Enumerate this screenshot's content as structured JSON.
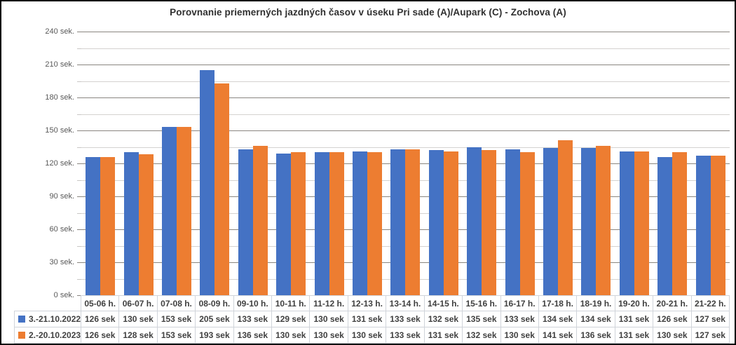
{
  "window": {
    "background": "#ffffff",
    "border_color": "#000000"
  },
  "chart_data": {
    "type": "bar",
    "title": "Porovnanie priemerných jazdných časov v úseku Pri sade (A)/Aupark (C) - Zochova (A)",
    "categories": [
      "05-06 h.",
      "06-07 h.",
      "07-08 h.",
      "08-09 h.",
      "09-10 h.",
      "10-11 h.",
      "11-12 h.",
      "12-13 h.",
      "13-14 h.",
      "14-15 h.",
      "15-16 h.",
      "16-17 h.",
      "17-18 h.",
      "18-19 h.",
      "19-20 h.",
      "20-21 h.",
      "21-22 h."
    ],
    "series": [
      {
        "name": "3.-21.10.2022",
        "color": "#4472C4",
        "values": [
          126,
          130,
          153,
          205,
          133,
          129,
          130,
          131,
          133,
          132,
          135,
          133,
          134,
          134,
          131,
          126,
          127
        ]
      },
      {
        "name": "2.-20.10.2023",
        "color": "#ED7D31",
        "values": [
          126,
          128,
          153,
          193,
          136,
          130,
          130,
          130,
          133,
          131,
          132,
          130,
          141,
          136,
          131,
          130,
          127
        ]
      }
    ],
    "xlabel": "",
    "ylabel": "",
    "ylim": [
      0,
      240
    ],
    "y_major_step": 30,
    "y_minor_step": 15,
    "y_tick_labels": [
      "0 sek.",
      "30 sek.",
      "60 sek.",
      "90 sek.",
      "120 sek.",
      "150 sek.",
      "180 sek.",
      "210 sek.",
      "240 sek."
    ],
    "value_suffix": " sek",
    "grid": true,
    "legend_position": "data-table-left",
    "data_table_shown": true
  },
  "colors": {
    "series_blue": "#4472C4",
    "series_orange": "#ED7D31",
    "grid_major": "#8a8680",
    "grid_minor": "#d4d2d0",
    "table_border": "#d0d4da",
    "table_text": "#404040",
    "axis_text": "#595959",
    "title_text": "#2f2f2f"
  }
}
